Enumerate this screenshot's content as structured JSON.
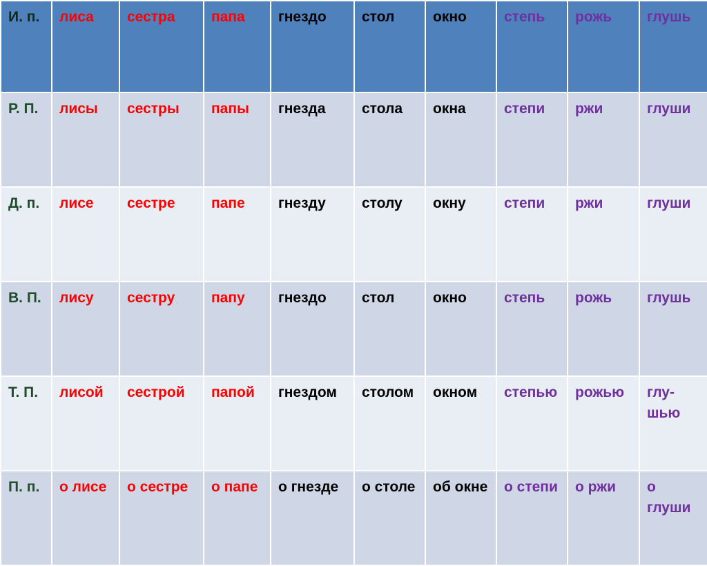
{
  "colors": {
    "header_bg": "#4f81bd",
    "row_dark_bg": "#cfd7e6",
    "row_light_bg": "#e9edf4",
    "case_label": "#1f4d2b",
    "first_declension": "#ff0000",
    "second_declension": "#000000",
    "third_declension": "#7030a0"
  },
  "rows": [
    {
      "case": "И. п.",
      "forms": [
        "лиса",
        "сестра",
        "папа",
        "гнездо",
        "стол",
        "окно",
        "степь",
        "рожь",
        "глушь"
      ]
    },
    {
      "case": "Р. П.",
      "forms": [
        "лисы",
        "сестры",
        "папы",
        "гнезда",
        "стола",
        "окна",
        "степи",
        "ржи",
        "глуши"
      ]
    },
    {
      "case": "Д. п.",
      "forms": [
        "лисе",
        "сестре",
        "папе",
        "гнезду",
        "столу",
        "окну",
        "степи",
        "ржи",
        "глуши"
      ]
    },
    {
      "case": "В. П.",
      "forms": [
        "лису",
        "сестру",
        "папу",
        "гнездо",
        "стол",
        "окно",
        "степь",
        "рожь",
        "глушь"
      ]
    },
    {
      "case": "Т. П.",
      "forms": [
        "лисой",
        "сестрой",
        "папой",
        "гнездом",
        "столом",
        "окном",
        "степью",
        "рожью",
        "глу-шью"
      ]
    },
    {
      "case": "П. п.",
      "forms": [
        "о лисе",
        "о сестре",
        "о папе",
        "о гнезде",
        "о столе",
        "об окне",
        "о степи",
        "о ржи",
        "о глуши"
      ]
    }
  ]
}
